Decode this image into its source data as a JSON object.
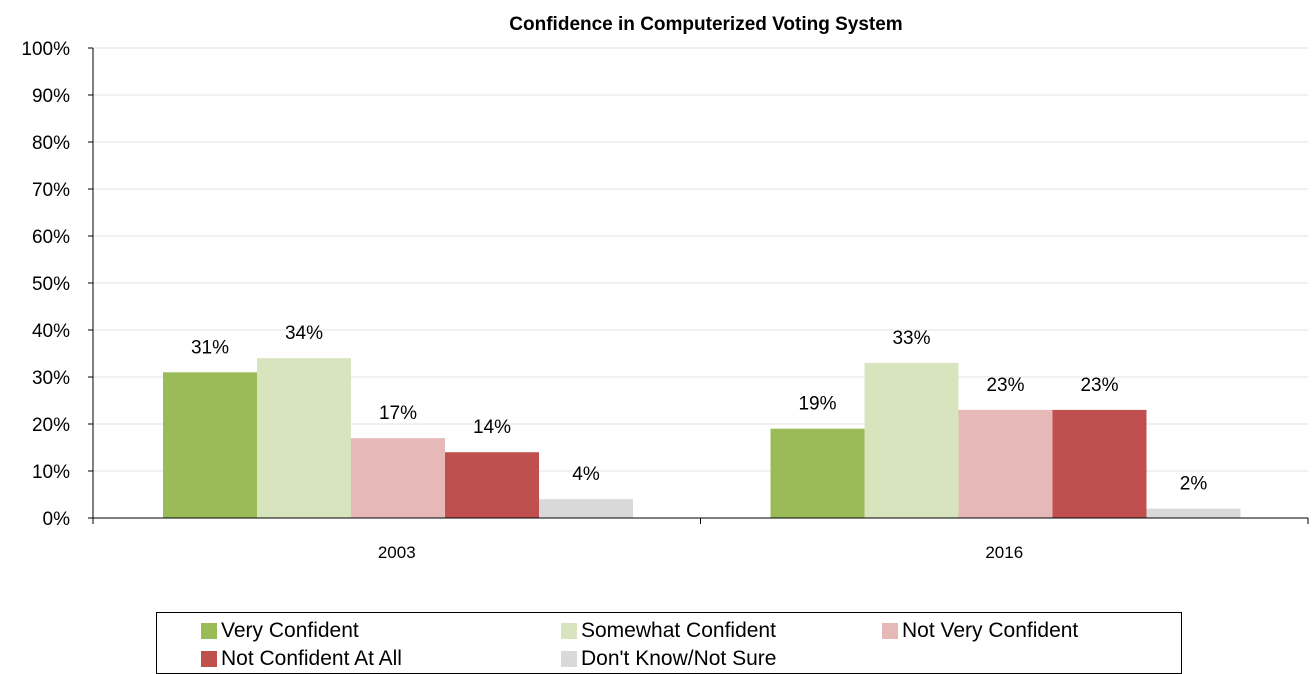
{
  "chart_data": {
    "type": "bar",
    "title": "Confidence in Computerized Voting System",
    "xlabel": "",
    "ylabel": "",
    "categories": [
      "2003",
      "2016"
    ],
    "series": [
      {
        "name": "Very Confident",
        "values": [
          31,
          19
        ],
        "color": "#9bbb59",
        "labels": [
          "31%",
          "19%"
        ]
      },
      {
        "name": "Somewhat Confident",
        "values": [
          34,
          33
        ],
        "color": "#d7e4bd",
        "labels": [
          "34%",
          "33%"
        ]
      },
      {
        "name": "Not Very Confident",
        "values": [
          17,
          23
        ],
        "color": "#e6b9b8",
        "labels": [
          "17%",
          "23%"
        ]
      },
      {
        "name": "Not Confident At All",
        "values": [
          14,
          23
        ],
        "color": "#c0504d",
        "labels": [
          "14%",
          "23%"
        ]
      },
      {
        "name": "Don't Know/Not Sure",
        "values": [
          4,
          2
        ],
        "color": "#d9d9d9",
        "labels": [
          "4%",
          "2%"
        ]
      }
    ],
    "ylim": [
      0,
      100
    ],
    "yticks": [
      "0%",
      "10%",
      "20%",
      "30%",
      "40%",
      "50%",
      "60%",
      "70%",
      "80%",
      "90%",
      "100%"
    ],
    "grid": true,
    "legend_position": "bottom"
  }
}
